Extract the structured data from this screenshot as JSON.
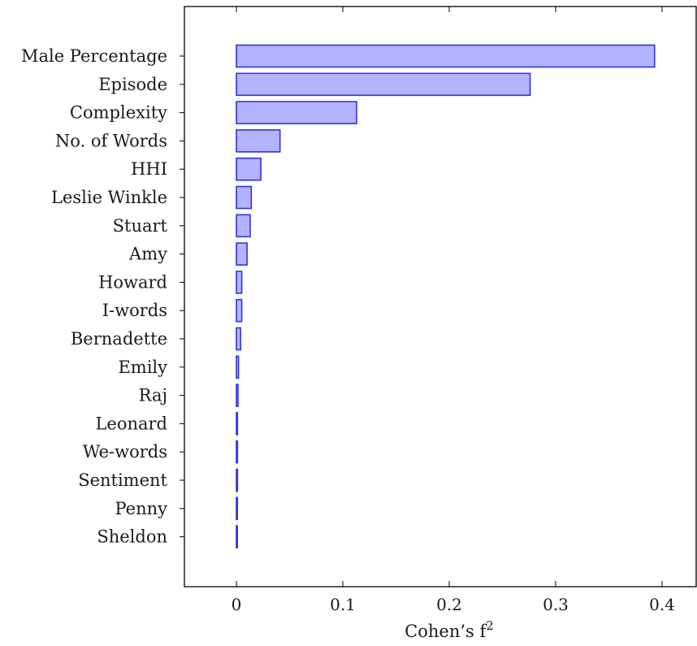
{
  "chart_data": {
    "type": "bar",
    "orientation": "horizontal",
    "xlabel": "Cohen’s f",
    "xlabel_superscript": "2",
    "xlim": [
      -0.05,
      0.43
    ],
    "xticks": [
      {
        "value": 0,
        "label": "0"
      },
      {
        "value": 0.1,
        "label": "0.1"
      },
      {
        "value": 0.2,
        "label": "0.2"
      },
      {
        "value": 0.3,
        "label": "0.3"
      },
      {
        "value": 0.4,
        "label": "0.4"
      }
    ],
    "grid": false,
    "bar_fill": "#b3b3ff",
    "bar_stroke": "#3333dd",
    "categories": [
      "Male Percentage",
      "Episode",
      "Complexity",
      "No. of Words",
      "HHI",
      "Leslie Winkle",
      "Stuart",
      "Amy",
      "Howard",
      "I-words",
      "Bernadette",
      "Emily",
      "Raj",
      "Leonard",
      "We-words",
      "Sentiment",
      "Penny",
      "Sheldon"
    ],
    "values": [
      0.393,
      0.276,
      0.113,
      0.041,
      0.023,
      0.014,
      0.013,
      0.01,
      0.005,
      0.005,
      0.004,
      0.002,
      0.0015,
      0.001,
      0.001,
      0.001,
      0.0005,
      0.0003
    ]
  }
}
